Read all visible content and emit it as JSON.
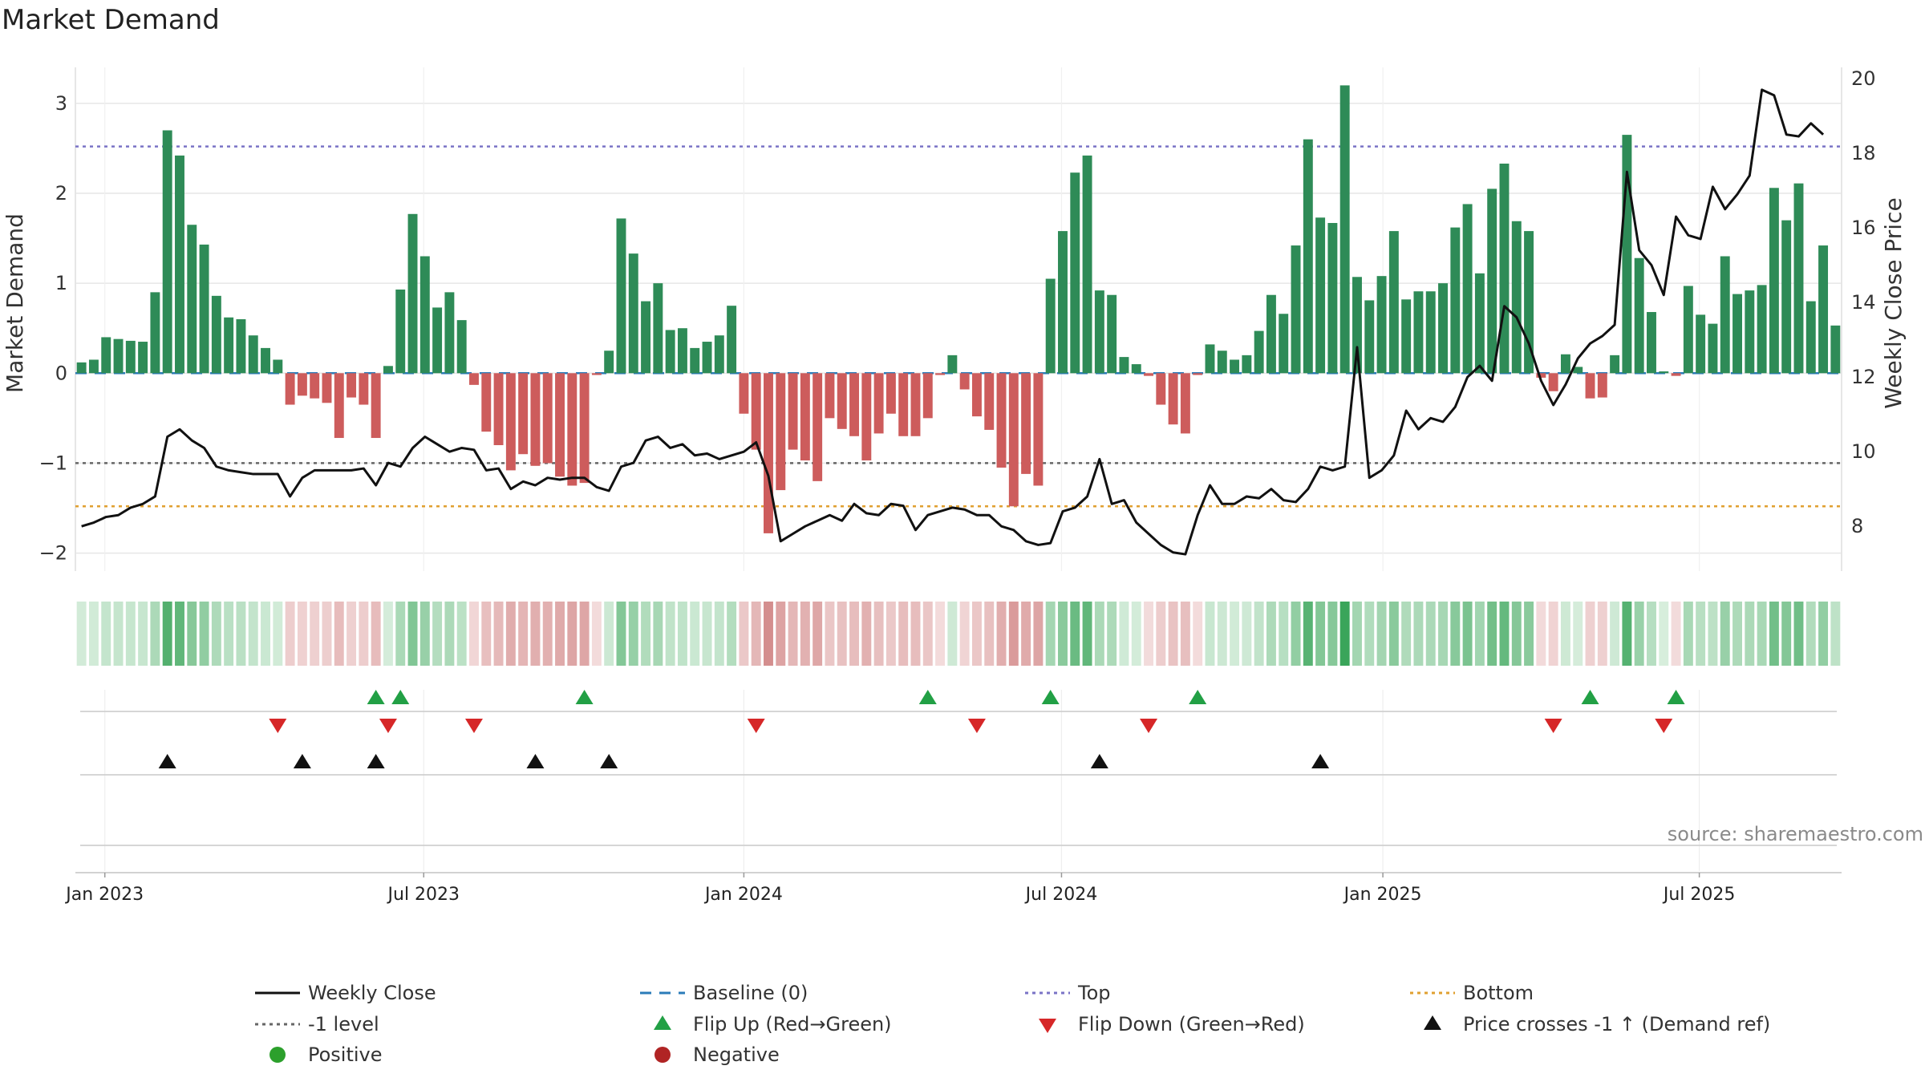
{
  "chart_data": {
    "type": "bar",
    "title": "Market Demand",
    "ylabel_left": "Market Demand",
    "ylabel_right": "Weekly Close Price",
    "source": "source: sharemaestro.com",
    "ylim_left": [
      -2.2,
      3.4
    ],
    "ylim_right": [
      6.8,
      20.3
    ],
    "yticks_left": [
      "3",
      "2",
      "1",
      "0",
      "−1",
      "−2"
    ],
    "yticks_left_values": [
      3,
      2,
      1,
      0,
      -1,
      -2
    ],
    "yticks_right": [
      "20",
      "18",
      "16",
      "14",
      "12",
      "10",
      "8"
    ],
    "yticks_right_values": [
      20,
      18,
      16,
      14,
      12,
      10,
      8
    ],
    "xticks": [
      {
        "label": "Jan 2023",
        "week": 2.4
      },
      {
        "label": "Jul 2023",
        "week": 28.4
      },
      {
        "label": "Jan 2024",
        "week": 54.5
      },
      {
        "label": "Jul 2024",
        "week": 80.4
      },
      {
        "label": "Jan 2025",
        "week": 106.6
      },
      {
        "label": "Jul 2025",
        "week": 132.4
      }
    ],
    "reference_lines": {
      "top": 2.52,
      "bottom": -1.48,
      "minus_one": -1,
      "baseline": 0
    },
    "demand": [
      0.12,
      0.15,
      0.4,
      0.38,
      0.36,
      0.35,
      0.9,
      2.7,
      2.42,
      1.65,
      1.43,
      0.86,
      0.62,
      0.6,
      0.42,
      0.28,
      0.15,
      -0.35,
      -0.25,
      -0.28,
      -0.33,
      -0.72,
      -0.27,
      -0.35,
      -0.72,
      0.08,
      0.93,
      1.77,
      1.3,
      0.73,
      0.9,
      0.59,
      -0.13,
      -0.65,
      -0.8,
      -1.08,
      -0.9,
      -1.03,
      -1.0,
      -1.15,
      -1.25,
      -1.22,
      -0.02,
      0.25,
      1.72,
      1.33,
      0.8,
      1.0,
      0.48,
      0.5,
      0.28,
      0.35,
      0.42,
      0.75,
      -0.45,
      -0.85,
      -1.78,
      -1.3,
      -0.85,
      -0.97,
      -1.2,
      -0.5,
      -0.62,
      -0.7,
      -0.97,
      -0.67,
      -0.45,
      -0.7,
      -0.7,
      -0.5,
      -0.02,
      0.2,
      -0.18,
      -0.48,
      -0.63,
      -1.05,
      -1.48,
      -1.12,
      -1.25,
      1.05,
      1.58,
      2.23,
      2.42,
      0.92,
      0.87,
      0.18,
      0.1,
      -0.03,
      -0.35,
      -0.57,
      -0.67,
      -0.02,
      0.32,
      0.25,
      0.15,
      0.2,
      0.47,
      0.87,
      0.66,
      1.42,
      2.6,
      1.73,
      1.67,
      3.2,
      1.07,
      0.81,
      1.08,
      1.58,
      0.82,
      0.91,
      0.91,
      1.0,
      1.62,
      1.88,
      1.11,
      2.05,
      2.33,
      1.69,
      1.58,
      -0.05,
      -0.2,
      0.21,
      0.07,
      -0.28,
      -0.27,
      0.2,
      2.65,
      1.28,
      0.68,
      0.02,
      -0.03,
      0.97,
      0.65,
      0.55,
      1.3,
      0.88,
      0.92,
      0.98,
      2.06,
      1.7,
      2.11,
      0.8,
      1.42,
      0.53
    ],
    "price": [
      8.0,
      8.1,
      8.25,
      8.3,
      8.5,
      8.6,
      8.8,
      10.4,
      10.6,
      10.3,
      10.1,
      9.6,
      9.5,
      9.45,
      9.4,
      9.4,
      9.4,
      8.8,
      9.3,
      9.5,
      9.5,
      9.5,
      9.5,
      9.55,
      9.1,
      9.7,
      9.6,
      10.1,
      10.4,
      10.2,
      10.0,
      10.1,
      10.05,
      9.5,
      9.55,
      9.0,
      9.2,
      9.1,
      9.3,
      9.25,
      9.3,
      9.3,
      9.05,
      8.95,
      9.6,
      9.7,
      10.3,
      10.4,
      10.1,
      10.2,
      9.9,
      9.95,
      9.8,
      9.9,
      10.0,
      10.25,
      9.35,
      7.6,
      7.8,
      8.0,
      8.15,
      8.3,
      8.15,
      8.6,
      8.35,
      8.3,
      8.6,
      8.55,
      7.9,
      8.3,
      8.4,
      8.5,
      8.45,
      8.3,
      8.3,
      8.0,
      7.9,
      7.6,
      7.5,
      7.55,
      8.4,
      8.5,
      8.8,
      9.8,
      8.6,
      8.7,
      8.1,
      7.8,
      7.5,
      7.3,
      7.25,
      8.3,
      9.1,
      8.6,
      8.6,
      8.8,
      8.75,
      9.0,
      8.7,
      8.65,
      9.0,
      9.6,
      9.5,
      9.6,
      12.8,
      9.3,
      9.5,
      9.9,
      11.1,
      10.6,
      10.9,
      10.8,
      11.2,
      12.0,
      12.3,
      11.9,
      13.9,
      13.6,
      12.9,
      11.9,
      11.25,
      11.8,
      12.5,
      12.9,
      13.1,
      13.4,
      17.5,
      15.4,
      15.0,
      14.2,
      16.3,
      15.8,
      15.7,
      17.1,
      16.5,
      16.9,
      17.4,
      19.7,
      19.55,
      18.5,
      18.45,
      18.8,
      18.5
    ],
    "flip_up_weeks": [
      24,
      26,
      41,
      69,
      79,
      91,
      123,
      130
    ],
    "flip_down_weeks": [
      16,
      25,
      32,
      55,
      73,
      87,
      120,
      129
    ],
    "price_cross_weeks": [
      7,
      18,
      24,
      37,
      43,
      83,
      101
    ],
    "legend": [
      {
        "label": "Weekly Close",
        "symbol": "solid-line",
        "color": "#111111"
      },
      {
        "label": "Baseline (0)",
        "symbol": "dash-line",
        "color": "#2b7bb9"
      },
      {
        "label": "Top",
        "symbol": "dot-line",
        "color": "#7a73c6"
      },
      {
        "label": "Bottom",
        "symbol": "dot-line",
        "color": "#e0a030"
      },
      {
        "label": "-1 level",
        "symbol": "dot-line",
        "color": "#666666"
      },
      {
        "label": "Flip Up (Red→Green)",
        "symbol": "triangle-up",
        "color": "#22a045"
      },
      {
        "label": "Flip Down (Green→Red)",
        "symbol": "triangle-down",
        "color": "#d62728"
      },
      {
        "label": "Price crosses -1 ↑ (Demand ref)",
        "symbol": "triangle-up",
        "color": "#111111"
      },
      {
        "label": "Positive",
        "symbol": "circle",
        "color": "#2ca02c"
      },
      {
        "label": "Negative",
        "symbol": "circle",
        "color": "#b02424"
      }
    ],
    "colors": {
      "positive_bar": "#2e8b57",
      "negative_bar": "#cd5c5c",
      "price_line": "#111111",
      "grid": "#e6e6e6"
    }
  }
}
